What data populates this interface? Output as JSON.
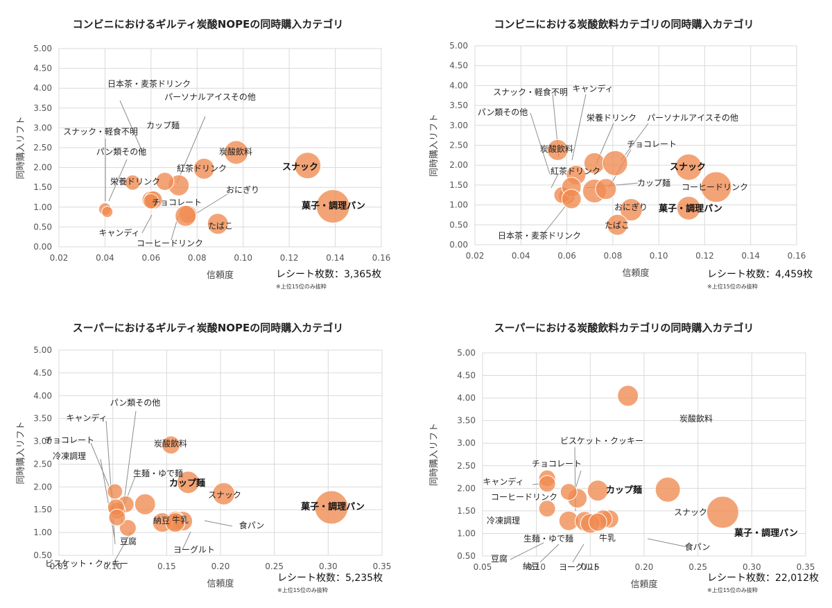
{
  "panels": [
    {
      "title": "コンビニにおけるギルティ炭酸NOPEの同時購入カテゴリ",
      "receipt": "レシート枚数：3,365枚",
      "note": "※上位15位のみ抜粋",
      "chart_data": {
        "type": "scatter",
        "title": "コンビニにおけるギルティ炭酸NOPEの同時購入カテゴリ",
        "xlabel": "信頼度",
        "ylabel": "同時購入リフト",
        "xlim": [
          0.02,
          0.16
        ],
        "ylim": [
          0.0,
          5.0
        ],
        "xticks": [
          "0.02",
          "0.04",
          "0.06",
          "0.08",
          "0.10",
          "0.12",
          "0.14",
          "0.16"
        ],
        "yticks": [
          "0.00",
          "0.50",
          "1.00",
          "1.50",
          "2.00",
          "2.50",
          "3.00",
          "3.50",
          "4.00",
          "4.50",
          "5.00"
        ],
        "points": [
          {
            "name": "日本茶・麦茶ドリンク",
            "x": 0.06,
            "y": 1.18,
            "bold": false
          },
          {
            "name": "パーソナルアイスその他",
            "x": 0.072,
            "y": 1.55,
            "bold": false
          },
          {
            "name": "カップ麺",
            "x": 0.066,
            "y": 1.65,
            "bold": false
          },
          {
            "name": "スナック・軽食不明",
            "x": 0.04,
            "y": 0.95,
            "bold": false
          },
          {
            "name": "パン類その他",
            "x": 0.041,
            "y": 0.88,
            "bold": false
          },
          {
            "name": "栄養ドリンク",
            "x": 0.052,
            "y": 1.62,
            "bold": false
          },
          {
            "name": "炭酸飲料",
            "x": 0.097,
            "y": 2.38,
            "bold": false
          },
          {
            "name": "紅茶ドリンク",
            "x": 0.083,
            "y": 1.97,
            "bold": false
          },
          {
            "name": "おにぎり",
            "x": 0.076,
            "y": 0.82,
            "bold": false
          },
          {
            "name": "チョコレート",
            "x": 0.061,
            "y": 1.18,
            "bold": false
          },
          {
            "name": "スナック",
            "x": 0.128,
            "y": 2.05,
            "bold": true
          },
          {
            "name": "菓子・調理パン",
            "x": 0.139,
            "y": 1.02,
            "bold": true
          },
          {
            "name": "キャンディ",
            "x": 0.06,
            "y": 1.15,
            "bold": false
          },
          {
            "name": "たばこ",
            "x": 0.089,
            "y": 0.58,
            "bold": false
          },
          {
            "name": "コーヒードリンク",
            "x": 0.075,
            "y": 0.78,
            "bold": false
          }
        ]
      }
    },
    {
      "title": "コンビニにおける炭酸飲料カテゴリの同時購入カテゴリ",
      "receipt": "レシート枚数：4,459枚",
      "note": "※上位15位のみ抜粋",
      "chart_data": {
        "type": "scatter",
        "title": "コンビニにおける炭酸飲料カテゴリの同時購入カテゴリ",
        "xlabel": "信頼度",
        "ylabel": "同時購入リフト",
        "xlim": [
          0.02,
          0.16
        ],
        "ylim": [
          0.0,
          5.0
        ],
        "xticks": [
          "0.02",
          "0.04",
          "0.06",
          "0.08",
          "0.10",
          "0.12",
          "0.14",
          "0.16"
        ],
        "yticks": [
          "0.00",
          "0.50",
          "1.00",
          "1.50",
          "2.00",
          "2.50",
          "3.00",
          "3.50",
          "4.00",
          "4.50",
          "5.00"
        ],
        "points": [
          {
            "name": "スナック・軽食不明",
            "x": 0.06,
            "y": 1.22,
            "bold": false
          },
          {
            "name": "キャンディ",
            "x": 0.064,
            "y": 1.75,
            "bold": false
          },
          {
            "name": "パン類その他",
            "x": 0.058,
            "y": 1.25,
            "bold": false
          },
          {
            "name": "栄養ドリンク",
            "x": 0.072,
            "y": 2.05,
            "bold": false
          },
          {
            "name": "パーソナルアイスその他",
            "x": 0.081,
            "y": 2.05,
            "bold": false
          },
          {
            "name": "炭酸飲料",
            "x": 0.056,
            "y": 2.38,
            "bold": false
          },
          {
            "name": "チョコレート",
            "x": 0.072,
            "y": 1.35,
            "bold": false
          },
          {
            "name": "紅茶ドリンク",
            "x": 0.062,
            "y": 1.45,
            "bold": false
          },
          {
            "name": "カップ麺",
            "x": 0.077,
            "y": 1.4,
            "bold": false
          },
          {
            "name": "スナック",
            "x": 0.113,
            "y": 1.95,
            "bold": true
          },
          {
            "name": "コーヒードリンク",
            "x": 0.125,
            "y": 1.45,
            "bold": false
          },
          {
            "name": "おにぎり",
            "x": 0.088,
            "y": 0.88,
            "bold": false
          },
          {
            "name": "菓子・調理パン",
            "x": 0.113,
            "y": 0.92,
            "bold": true
          },
          {
            "name": "たばこ",
            "x": 0.082,
            "y": 0.5,
            "bold": false
          },
          {
            "name": "日本茶・麦茶ドリンク",
            "x": 0.062,
            "y": 1.15,
            "bold": false
          }
        ]
      }
    },
    {
      "title": "スーパーにおけるギルティ炭酸NOPEの同時購入カテゴリ",
      "receipt": "レシート枚数：5,235枚",
      "note": "※上位15位のみ抜粋",
      "chart_data": {
        "type": "scatter",
        "title": "スーパーにおけるギルティ炭酸NOPEの同時購入カテゴリ",
        "xlabel": "信頼度",
        "ylabel": "同時購入リフト",
        "xlim": [
          0.05,
          0.35
        ],
        "ylim": [
          0.5,
          5.0
        ],
        "xticks": [
          "0.05",
          "0.10",
          "0.15",
          "0.20",
          "0.25",
          "0.30",
          "0.35"
        ],
        "yticks": [
          "0.50",
          "1.00",
          "1.50",
          "2.00",
          "2.50",
          "3.00",
          "3.50",
          "4.00",
          "4.50",
          "5.00"
        ],
        "points": [
          {
            "name": "パン類その他",
            "x": 0.112,
            "y": 1.62,
            "bold": false
          },
          {
            "name": "キャンディ",
            "x": 0.104,
            "y": 1.48,
            "bold": false
          },
          {
            "name": "チョコレート",
            "x": 0.102,
            "y": 1.9,
            "bold": false
          },
          {
            "name": "冷凍調理",
            "x": 0.103,
            "y": 1.55,
            "bold": false
          },
          {
            "name": "生麺・ゆで麺",
            "x": 0.13,
            "y": 1.62,
            "bold": false
          },
          {
            "name": "炭酸飲料",
            "x": 0.154,
            "y": 2.92,
            "bold": false
          },
          {
            "name": "カップ麺",
            "x": 0.17,
            "y": 2.1,
            "bold": true
          },
          {
            "name": "スナック",
            "x": 0.203,
            "y": 1.85,
            "bold": false
          },
          {
            "name": "菓子・調理パン",
            "x": 0.303,
            "y": 1.55,
            "bold": true
          },
          {
            "name": "食パン",
            "x": 0.165,
            "y": 1.25,
            "bold": false
          },
          {
            "name": "牛乳",
            "x": 0.158,
            "y": 1.25,
            "bold": false
          },
          {
            "name": "納豆",
            "x": 0.146,
            "y": 1.22,
            "bold": false
          },
          {
            "name": "豆腐",
            "x": 0.114,
            "y": 1.1,
            "bold": false
          },
          {
            "name": "ビスケット・クッキー",
            "x": 0.104,
            "y": 1.33,
            "bold": false
          },
          {
            "name": "ヨーグルト",
            "x": 0.158,
            "y": 1.22,
            "bold": false
          }
        ]
      }
    },
    {
      "title": "スーパーにおける炭酸飲料カテゴリの同時購入カテゴリ",
      "receipt": "レシート枚数：22,012枚",
      "note": "※上位15位のみ抜粋",
      "chart_data": {
        "type": "scatter",
        "title": "スーパーにおける炭酸飲料カテゴリの同時購入カテゴリ",
        "xlabel": "信頼度",
        "ylabel": "同時購入リフト",
        "xlim": [
          0.05,
          0.35
        ],
        "ylim": [
          0.5,
          5.0
        ],
        "xticks": [
          "0.05",
          "0.10",
          "0.15",
          "0.20",
          "0.25",
          "0.30",
          "0.35"
        ],
        "yticks": [
          "0.50",
          "1.00",
          "1.50",
          "2.00",
          "2.50",
          "3.00",
          "3.50",
          "4.00",
          "4.50",
          "5.00"
        ],
        "points": [
          {
            "name": "炭酸飲料",
            "x": 0.185,
            "y": 4.05,
            "bold": false
          },
          {
            "name": "ビスケット・クッキー",
            "x": 0.138,
            "y": 1.78,
            "bold": false
          },
          {
            "name": "チョコレート",
            "x": 0.13,
            "y": 1.92,
            "bold": false
          },
          {
            "name": "キャンディ",
            "x": 0.11,
            "y": 2.22,
            "bold": false
          },
          {
            "name": "カップ麺",
            "x": 0.157,
            "y": 1.95,
            "bold": true
          },
          {
            "name": "コーヒードリンク",
            "x": 0.11,
            "y": 2.1,
            "bold": false
          },
          {
            "name": "スナック",
            "x": 0.222,
            "y": 1.97,
            "bold": false
          },
          {
            "name": "冷凍調理",
            "x": 0.11,
            "y": 1.55,
            "bold": false
          },
          {
            "name": "生麺・ゆで麺",
            "x": 0.13,
            "y": 1.28,
            "bold": false
          },
          {
            "name": "牛乳",
            "x": 0.168,
            "y": 1.32,
            "bold": false
          },
          {
            "name": "菓子・調理パン",
            "x": 0.273,
            "y": 1.47,
            "bold": true
          },
          {
            "name": "食パン",
            "x": 0.162,
            "y": 1.32,
            "bold": false
          },
          {
            "name": "豆腐",
            "x": 0.145,
            "y": 1.27,
            "bold": false
          },
          {
            "name": "納豆",
            "x": 0.15,
            "y": 1.22,
            "bold": false
          },
          {
            "name": "ヨーグルト",
            "x": 0.157,
            "y": 1.25,
            "bold": false
          }
        ]
      }
    }
  ],
  "colors": {
    "bubble": "#ef8a4f",
    "bubble_stroke": "#ffffff",
    "grid": "#d9d9d9",
    "leader": "#8c8c8c"
  }
}
